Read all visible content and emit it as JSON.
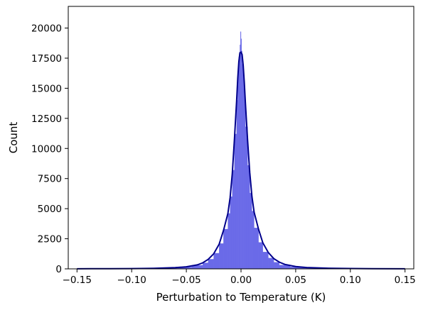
{
  "chart_data": {
    "type": "bar",
    "title": "",
    "xlabel": "Perturbation to Temperature (K)",
    "ylabel": "Count",
    "xlim": [
      -0.158,
      0.158
    ],
    "ylim": [
      0,
      21800
    ],
    "x_ticks": [
      {
        "value": -0.15,
        "label": "−0.15"
      },
      {
        "value": -0.1,
        "label": "−0.10"
      },
      {
        "value": -0.05,
        "label": "−0.05"
      },
      {
        "value": 0.0,
        "label": "0.00"
      },
      {
        "value": 0.05,
        "label": "0.05"
      },
      {
        "value": 0.1,
        "label": "0.10"
      },
      {
        "value": 0.15,
        "label": "0.15"
      }
    ],
    "y_ticks": [
      {
        "value": 0,
        "label": "0"
      },
      {
        "value": 2500,
        "label": "2500"
      },
      {
        "value": 5000,
        "label": "5000"
      },
      {
        "value": 7500,
        "label": "7500"
      },
      {
        "value": 10000,
        "label": "10000"
      },
      {
        "value": 12500,
        "label": "12500"
      },
      {
        "value": 15000,
        "label": "15000"
      },
      {
        "value": 17500,
        "label": "17500"
      },
      {
        "value": 20000,
        "label": "20000"
      }
    ],
    "grid": false,
    "legend": "none",
    "colors": {
      "bars": "#6a6ae8",
      "kde": "#00008b"
    },
    "histogram": {
      "bins": [
        {
          "x0": -0.15,
          "x1": -0.1,
          "count": 20
        },
        {
          "x0": -0.1,
          "x1": -0.06,
          "count": 60
        },
        {
          "x0": -0.06,
          "x1": -0.045,
          "count": 150
        },
        {
          "x0": -0.045,
          "x1": -0.035,
          "count": 300
        },
        {
          "x0": -0.035,
          "x1": -0.03,
          "count": 500
        },
        {
          "x0": -0.03,
          "x1": -0.025,
          "count": 800
        },
        {
          "x0": -0.025,
          "x1": -0.02,
          "count": 1300
        },
        {
          "x0": -0.02,
          "x1": -0.016,
          "count": 2100
        },
        {
          "x0": -0.016,
          "x1": -0.012,
          "count": 3300
        },
        {
          "x0": -0.012,
          "x1": -0.01,
          "count": 4600
        },
        {
          "x0": -0.01,
          "x1": -0.008,
          "count": 6000
        },
        {
          "x0": -0.008,
          "x1": -0.006,
          "count": 8200
        },
        {
          "x0": -0.006,
          "x1": -0.004,
          "count": 11200
        },
        {
          "x0": -0.004,
          "x1": -0.003,
          "count": 14000
        },
        {
          "x0": -0.003,
          "x1": -0.002,
          "count": 16300
        },
        {
          "x0": -0.002,
          "x1": -0.001,
          "count": 17600
        },
        {
          "x0": -0.001,
          "x1": -0.0005,
          "count": 18600
        },
        {
          "x0": -0.0005,
          "x1": 0.0,
          "count": 19700
        },
        {
          "x0": 0.0,
          "x1": 0.0005,
          "count": 19100
        },
        {
          "x0": 0.0005,
          "x1": 0.001,
          "count": 18100
        },
        {
          "x0": 0.001,
          "x1": 0.002,
          "count": 17000
        },
        {
          "x0": 0.002,
          "x1": 0.003,
          "count": 16000
        },
        {
          "x0": 0.003,
          "x1": 0.004,
          "count": 14400
        },
        {
          "x0": 0.004,
          "x1": 0.006,
          "count": 11800
        },
        {
          "x0": 0.006,
          "x1": 0.008,
          "count": 8600
        },
        {
          "x0": 0.008,
          "x1": 0.01,
          "count": 6300
        },
        {
          "x0": 0.01,
          "x1": 0.012,
          "count": 4800
        },
        {
          "x0": 0.012,
          "x1": 0.016,
          "count": 3400
        },
        {
          "x0": 0.016,
          "x1": 0.02,
          "count": 2200
        },
        {
          "x0": 0.02,
          "x1": 0.025,
          "count": 1400
        },
        {
          "x0": 0.025,
          "x1": 0.03,
          "count": 900
        },
        {
          "x0": 0.03,
          "x1": 0.035,
          "count": 550
        },
        {
          "x0": 0.035,
          "x1": 0.045,
          "count": 320
        },
        {
          "x0": 0.045,
          "x1": 0.06,
          "count": 160
        },
        {
          "x0": 0.06,
          "x1": 0.1,
          "count": 60
        },
        {
          "x0": 0.1,
          "x1": 0.15,
          "count": 20
        }
      ]
    },
    "kde": {
      "x": [
        -0.15,
        -0.12,
        -0.1,
        -0.08,
        -0.06,
        -0.05,
        -0.04,
        -0.035,
        -0.03,
        -0.025,
        -0.02,
        -0.016,
        -0.012,
        -0.01,
        -0.008,
        -0.006,
        -0.004,
        -0.003,
        -0.002,
        -0.001,
        0.0,
        0.001,
        0.002,
        0.003,
        0.004,
        0.006,
        0.008,
        0.01,
        0.012,
        0.016,
        0.02,
        0.025,
        0.03,
        0.035,
        0.04,
        0.05,
        0.06,
        0.08,
        0.1,
        0.12,
        0.15
      ],
      "y": [
        10,
        15,
        25,
        45,
        100,
        170,
        330,
        500,
        790,
        1250,
        2050,
        3200,
        4600,
        5900,
        7900,
        10800,
        14000,
        15800,
        17200,
        17950,
        18000,
        17800,
        16900,
        15500,
        13800,
        10700,
        8000,
        6000,
        4700,
        3300,
        2150,
        1350,
        850,
        560,
        370,
        190,
        110,
        50,
        28,
        15,
        10
      ]
    }
  }
}
